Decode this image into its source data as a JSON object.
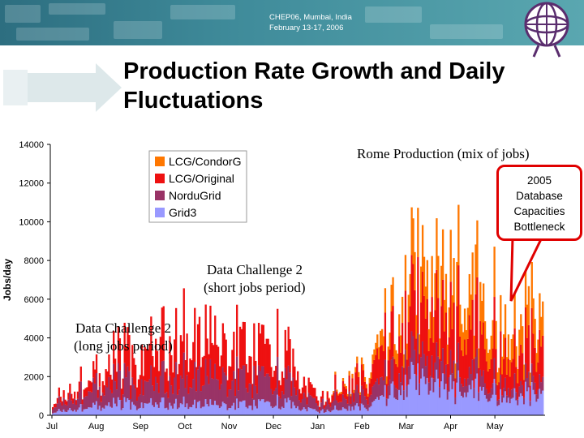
{
  "header": {
    "conference": "CHEP06, Mumbai, India",
    "dates": "February 13-17, 2006"
  },
  "slide_title": "Production Rate Growth and Daily Fluctuations",
  "callout": {
    "lines": [
      "2005",
      "Database",
      "Capacities",
      "Bottleneck"
    ]
  },
  "colors": {
    "LCG/CondorG": "#ff7700",
    "LCG/Original": "#ee1111",
    "NorduGrid": "#993366",
    "Grid3": "#9999ff",
    "banner": "#3f8b9a",
    "callout_border": "#e00000"
  },
  "chart_data": {
    "type": "area",
    "stacked": true,
    "title": "Rome Production (mix of jobs)",
    "ylabel": "Jobs/day",
    "xlabel": "",
    "ylim": [
      0,
      14000
    ],
    "yticks": [
      0,
      2000,
      4000,
      6000,
      8000,
      10000,
      12000,
      14000
    ],
    "xticks": [
      "Jul",
      "Aug",
      "Sep",
      "Oct",
      "Nov",
      "Dec",
      "Jan",
      "Feb",
      "Mar",
      "Apr",
      "May"
    ],
    "legend_position": "top-left",
    "annotations": [
      {
        "lines": [
          "Data Challenge 2",
          "(long jobs period)"
        ]
      },
      {
        "lines": [
          "Data Challenge 2",
          "(short jobs period)"
        ]
      }
    ],
    "series": [
      {
        "name": "Grid3",
        "monthly_peak": [
          300,
          900,
          1100,
          1000,
          1000,
          1200,
          400,
          800,
          2800,
          2600,
          1800
        ]
      },
      {
        "name": "NorduGrid",
        "monthly_peak": [
          600,
          1800,
          2000,
          2400,
          2600,
          2200,
          700,
          1200,
          1600,
          1600,
          1000
        ]
      },
      {
        "name": "LCG/Original",
        "monthly_peak": [
          400,
          1200,
          3000,
          3500,
          3200,
          2800,
          500,
          1500,
          4000,
          4500,
          3000
        ]
      },
      {
        "name": "LCG/CondorG",
        "monthly_peak": [
          0,
          0,
          0,
          0,
          0,
          0,
          0,
          500,
          2500,
          3500,
          2500
        ]
      }
    ]
  }
}
